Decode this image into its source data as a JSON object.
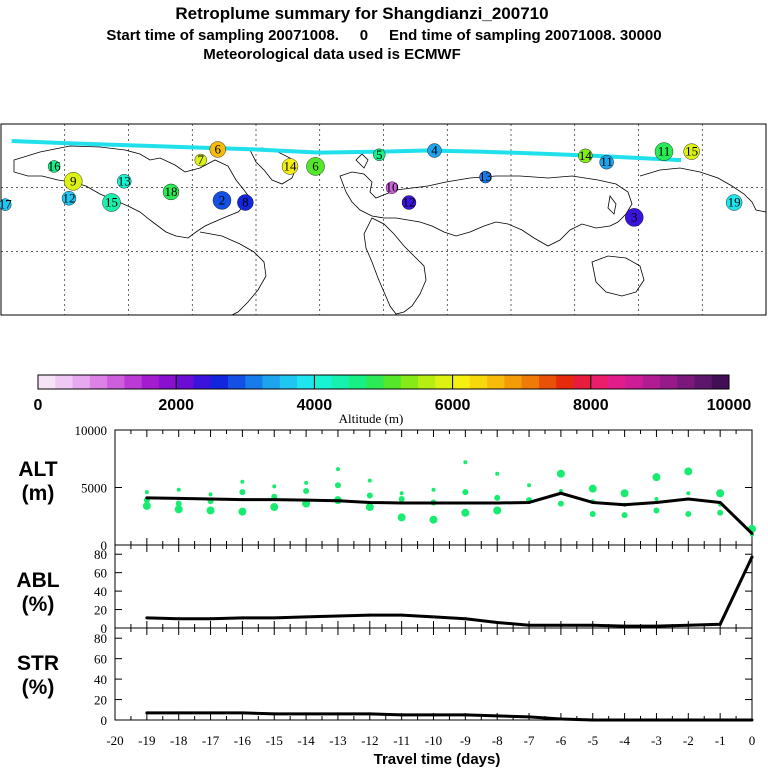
{
  "header": {
    "title": "Retroplume summary for Shangdianzi_200710",
    "line2": "Start time of sampling 20071008.     0     End time of sampling 20071008. 30000",
    "line3": "Meteorological data used is ECMWF"
  },
  "colorbar": {
    "label": "Altitude  (m)",
    "ticks": [
      "0",
      "2000",
      "4000",
      "6000",
      "8000",
      "10000"
    ],
    "range": [
      0,
      10000
    ],
    "colors": [
      "#f6e3f8",
      "#efc8f3",
      "#e6a8ee",
      "#dc82e6",
      "#cd5fdd",
      "#bb3ad5",
      "#a31ccd",
      "#8a10cf",
      "#6c0dd6",
      "#3a14dc",
      "#1226de",
      "#1450e4",
      "#167cea",
      "#1ea4ef",
      "#20c6f2",
      "#1de6ef",
      "#18f3d2",
      "#16f2ad",
      "#18ef85",
      "#2cea56",
      "#55e82a",
      "#86ea16",
      "#b6ee14",
      "#dcf212",
      "#f6f010",
      "#f7d80c",
      "#f7bc0a",
      "#f49c08",
      "#ee7a08",
      "#e85206",
      "#e62a0c",
      "#e81c3c",
      "#ea1e6a",
      "#e31c8c",
      "#cc1c96",
      "#b21c92",
      "#961a8a",
      "#7a187c",
      "#5e166c",
      "#420e56"
    ]
  },
  "map": {
    "trajectory_color": "#20e0ec",
    "markers": [
      {
        "label": "5",
        "lon": -2,
        "lat": 75.5,
        "alt": 4600
      },
      {
        "label": "4",
        "lon": 24,
        "lat": 77.5,
        "alt": 3400
      },
      {
        "label": "6",
        "lon": -78,
        "lat": 78,
        "alt": 6500
      },
      {
        "label": "6",
        "lon": -32,
        "lat": 70,
        "alt": 5200
      },
      {
        "label": "7",
        "lon": -86,
        "lat": 73,
        "alt": 5800
      },
      {
        "label": "13",
        "lon": -122,
        "lat": 63,
        "alt": 4200
      },
      {
        "label": "18",
        "lon": -100,
        "lat": 58,
        "alt": 4800
      },
      {
        "label": "11",
        "lon": 132,
        "lat": 77,
        "alt": 4800
      },
      {
        "label": "16",
        "lon": -155,
        "lat": 70,
        "alt": 4500
      },
      {
        "label": "12",
        "lon": -148,
        "lat": 55,
        "alt": 3700
      },
      {
        "label": "8",
        "lon": -65,
        "lat": 53,
        "alt": 2600
      },
      {
        "label": "2",
        "lon": -76,
        "lat": 54,
        "alt": 2800
      },
      {
        "label": "17",
        "lon": -178,
        "lat": 52,
        "alt": 3600
      },
      {
        "label": "11",
        "lon": 105,
        "lat": 72,
        "alt": 3400
      },
      {
        "label": "19",
        "lon": 165,
        "lat": 53,
        "alt": 3800
      },
      {
        "label": "3",
        "lon": 118,
        "lat": 46,
        "alt": 2400
      },
      {
        "label": "10",
        "lon": 4,
        "lat": 60,
        "alt": 1000
      },
      {
        "label": "12",
        "lon": 12,
        "lat": 53,
        "alt": 2400
      },
      {
        "label": "14",
        "lon": -44,
        "lat": 70,
        "alt": 6100
      },
      {
        "label": "15",
        "lon": -128,
        "lat": 53,
        "alt": 4400
      },
      {
        "label": "13",
        "lon": 48,
        "lat": 65,
        "alt": 3200
      },
      {
        "label": "14",
        "lon": 95,
        "lat": 75,
        "alt": 5400
      },
      {
        "label": "15",
        "lon": 145,
        "lat": 77,
        "alt": 5800
      },
      {
        "label": "9",
        "lon": -146,
        "lat": 63,
        "alt": 5800
      }
    ]
  },
  "chart_data": [
    {
      "type": "line",
      "panel_label": [
        "ALT",
        "(m)"
      ],
      "ylabel": "ALT (m)",
      "x": [
        -19,
        -18,
        -17,
        -16,
        -15,
        -14,
        -13,
        -12,
        -11,
        -10,
        -9,
        -8,
        -7,
        -6,
        -5,
        -4,
        -3,
        -2,
        -1,
        0
      ],
      "series": [
        {
          "name": "mean altitude",
          "values": [
            4100,
            4050,
            4000,
            3950,
            3950,
            3900,
            3850,
            3700,
            3650,
            3650,
            3650,
            3650,
            3700,
            4500,
            3700,
            3500,
            3700,
            4000,
            3700,
            1000
          ]
        }
      ],
      "scatter": {
        "name": "cluster altitudes",
        "color": "#18ec70",
        "x": [
          -19,
          -19,
          -19,
          -18,
          -18,
          -18,
          -17,
          -17,
          -17,
          -16,
          -16,
          -16,
          -15,
          -15,
          -15,
          -14,
          -14,
          -14,
          -13,
          -13,
          -13,
          -12,
          -12,
          -12,
          -11,
          -11,
          -11,
          -10,
          -10,
          -10,
          -9,
          -9,
          -9,
          -8,
          -8,
          -8,
          -7,
          -7,
          -6,
          -6,
          -6,
          -5,
          -5,
          -5,
          -4,
          -4,
          -4,
          -3,
          -3,
          -3,
          -2,
          -2,
          -2,
          -1,
          -1,
          -1,
          0,
          0
        ],
        "y": [
          4600,
          3900,
          3400,
          4800,
          3600,
          3100,
          4400,
          3800,
          3000,
          5500,
          4600,
          2900,
          5100,
          4200,
          3300,
          5400,
          4700,
          3600,
          6600,
          5200,
          3900,
          5600,
          4300,
          3300,
          4500,
          4000,
          2400,
          4800,
          3700,
          2200,
          7200,
          4600,
          2800,
          6200,
          4100,
          3000,
          5200,
          3900,
          6200,
          4700,
          3600,
          4900,
          3800,
          2700,
          4500,
          3500,
          2600,
          5900,
          4000,
          3000,
          6400,
          4500,
          2700,
          4500,
          3500,
          2800,
          1400,
          900
        ]
      },
      "xlim": [
        -20,
        0
      ],
      "ylim": [
        0,
        10000
      ],
      "yticks": [
        "0",
        "5000",
        "10000"
      ]
    },
    {
      "type": "line",
      "panel_label": [
        "ABL",
        "(%)"
      ],
      "ylabel": "ABL (%)",
      "x": [
        -19,
        -18,
        -17,
        -16,
        -15,
        -14,
        -13,
        -12,
        -11,
        -10,
        -9,
        -8,
        -7,
        -6,
        -5,
        -4,
        -3,
        -2,
        -1,
        0
      ],
      "series": [
        {
          "name": "ABL fraction",
          "values": [
            11,
            10,
            10,
            11,
            11,
            12,
            13,
            14,
            14,
            12,
            10,
            6,
            3,
            3,
            3,
            2,
            2,
            3,
            4,
            77
          ]
        }
      ],
      "xlim": [
        -20,
        0
      ],
      "ylim": [
        0,
        90
      ],
      "yticks": [
        "0",
        "20",
        "40",
        "60",
        "80"
      ]
    },
    {
      "type": "line",
      "panel_label": [
        "STR",
        "(%)"
      ],
      "ylabel": "STR (%)",
      "x": [
        -19,
        -18,
        -17,
        -16,
        -15,
        -14,
        -13,
        -12,
        -11,
        -10,
        -9,
        -8,
        -7,
        -6,
        -5,
        -4,
        -3,
        -2,
        -1,
        0
      ],
      "series": [
        {
          "name": "stratosphere fraction",
          "values": [
            7,
            7,
            7,
            7,
            6,
            6,
            6,
            6,
            5,
            5,
            5,
            4,
            3,
            1,
            0,
            0,
            0,
            0,
            0,
            0
          ]
        }
      ],
      "xlim": [
        -20,
        0
      ],
      "ylim": [
        0,
        90
      ],
      "yticks": [
        "0",
        "20",
        "40",
        "60",
        "80"
      ],
      "xlabel": "Travel time (days)",
      "xticks": [
        "-20",
        "-19",
        "-18",
        "-17",
        "-16",
        "-15",
        "-14",
        "-13",
        "-12",
        "-11",
        "-10",
        "-9",
        "-8",
        "-7",
        "-6",
        "-5",
        "-4",
        "-3",
        "-2",
        "-1",
        "0"
      ]
    }
  ]
}
